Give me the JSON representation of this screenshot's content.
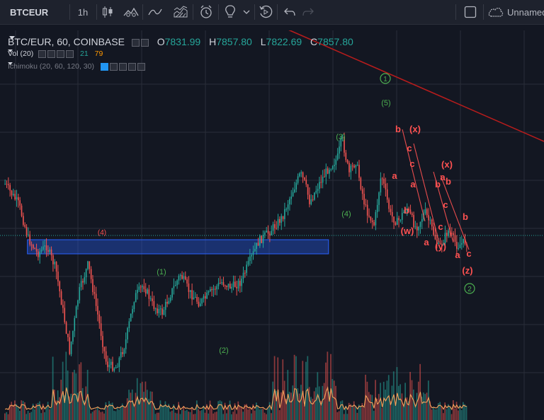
{
  "toolbar": {
    "symbol": "BTCEUR",
    "interval": "1h",
    "layout_name": "Unnamed"
  },
  "legend": {
    "title": "BTC/EUR, 60, COINBASE",
    "o_label": "O",
    "o_value": "7831.99",
    "h_label": "H",
    "h_value": "7857.80",
    "l_label": "L",
    "l_value": "7822.69",
    "c_label": "C",
    "c_value": "7857.80",
    "vol_label": "Vol (20)",
    "vol_value1": "21",
    "vol_value2": "79",
    "ichimoku_label": "Ichimoku (20, 60, 120, 30)"
  },
  "colors": {
    "background": "#131722",
    "grid": "#2a2e39",
    "up": "#26a69a",
    "down": "#ef5350",
    "wave_green": "#4caf50",
    "wave_red": "#ff5252",
    "trendline": "#b71c1c",
    "zone_fill": "#2962ff",
    "volume_ma": "#f7a35c",
    "last_price_line": "#26a69a"
  },
  "chart_data": {
    "type": "candlestick",
    "symbol": "BTC/EUR",
    "exchange": "COINBASE",
    "interval_minutes": 60,
    "last_bar": {
      "open": 7831.99,
      "high": 7857.8,
      "low": 7822.69,
      "close": 7857.8
    },
    "price_path": [
      [
        0,
        0.28
      ],
      [
        0.03,
        0.36
      ],
      [
        0.05,
        0.49
      ],
      [
        0.07,
        0.55
      ],
      [
        0.09,
        0.52
      ],
      [
        0.11,
        0.61
      ],
      [
        0.13,
        0.82
      ],
      [
        0.14,
        0.93
      ],
      [
        0.16,
        0.7
      ],
      [
        0.18,
        0.59
      ],
      [
        0.2,
        0.78
      ],
      [
        0.22,
        0.98
      ],
      [
        0.24,
        0.99
      ],
      [
        0.26,
        0.9
      ],
      [
        0.28,
        0.72
      ],
      [
        0.3,
        0.67
      ],
      [
        0.32,
        0.75
      ],
      [
        0.34,
        0.78
      ],
      [
        0.36,
        0.7
      ],
      [
        0.38,
        0.63
      ],
      [
        0.4,
        0.7
      ],
      [
        0.42,
        0.74
      ],
      [
        0.43,
        0.73
      ],
      [
        0.45,
        0.69
      ],
      [
        0.47,
        0.66
      ],
      [
        0.49,
        0.68
      ],
      [
        0.51,
        0.66
      ],
      [
        0.53,
        0.58
      ],
      [
        0.55,
        0.5
      ],
      [
        0.57,
        0.47
      ],
      [
        0.59,
        0.43
      ],
      [
        0.6,
        0.41
      ],
      [
        0.62,
        0.32
      ],
      [
        0.64,
        0.24
      ],
      [
        0.65,
        0.28
      ],
      [
        0.66,
        0.35
      ],
      [
        0.68,
        0.28
      ],
      [
        0.7,
        0.22
      ],
      [
        0.72,
        0.18
      ],
      [
        0.73,
        0.1
      ],
      [
        0.745,
        0.24
      ],
      [
        0.76,
        0.19
      ],
      [
        0.78,
        0.37
      ],
      [
        0.8,
        0.44
      ],
      [
        0.815,
        0.24
      ],
      [
        0.835,
        0.4
      ],
      [
        0.85,
        0.43
      ],
      [
        0.87,
        0.37
      ],
      [
        0.89,
        0.45
      ],
      [
        0.91,
        0.39
      ],
      [
        0.92,
        0.43
      ],
      [
        0.94,
        0.53
      ],
      [
        0.96,
        0.46
      ],
      [
        0.98,
        0.52
      ],
      [
        1.0,
        0.5
      ]
    ],
    "zone": {
      "label": "(4)"
    },
    "wave_labels_green": [
      "1",
      "(1)",
      "(2)",
      "(3)",
      "(4)",
      "(5)",
      "2"
    ],
    "wave_labels_red": [
      "(4)",
      "b",
      "(x)",
      "a",
      "c",
      "b",
      "c",
      "a",
      "(w)",
      "a",
      "(y)",
      "b",
      "a",
      "c",
      "(x)",
      "b",
      "c",
      "a",
      "b",
      "c",
      "(z)"
    ],
    "indicators": [
      "Vol (20)",
      "Ichimoku (20, 60, 120, 30)"
    ]
  }
}
